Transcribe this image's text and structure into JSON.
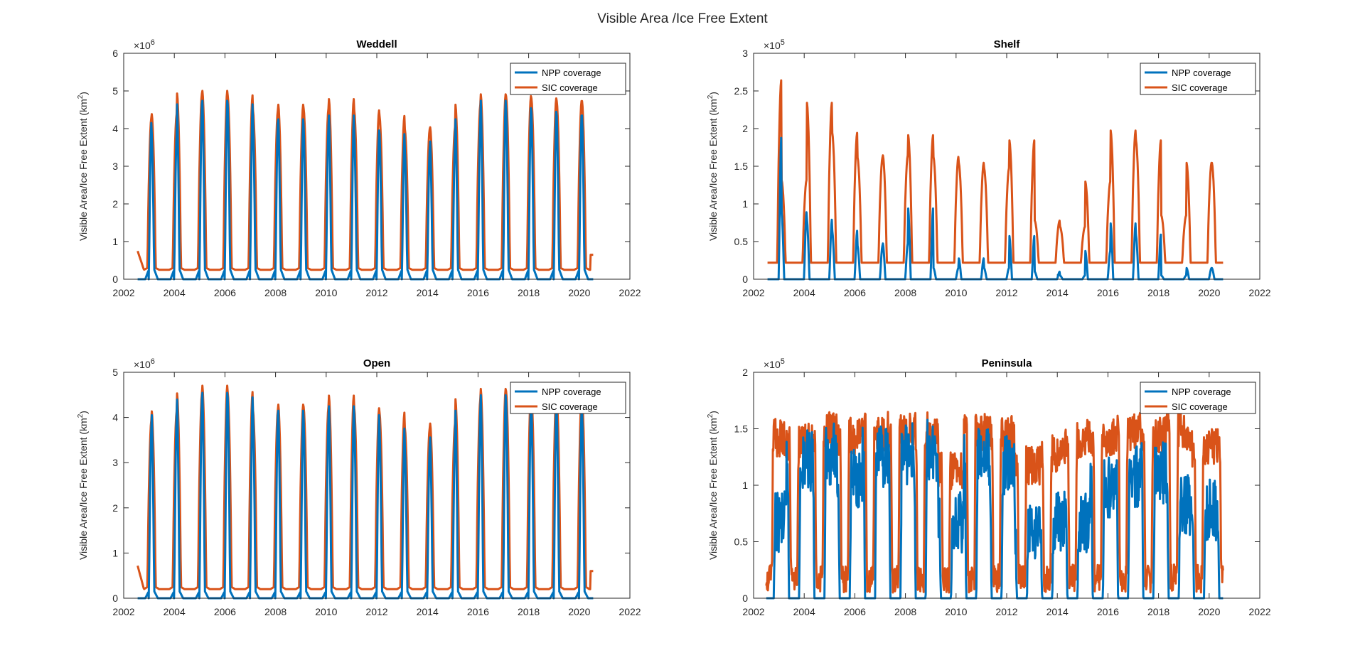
{
  "figure_title": "Visible Area /Ice Free Extent",
  "colors": {
    "npp": "#0072BD",
    "sic": "#D95319",
    "axis": "#262626"
  },
  "chart_data": [
    {
      "type": "line",
      "title": "Weddell",
      "ylabel_main": "Visible Area/Ice Free Extent (km",
      "ylabel_sup": "2",
      "ylabel_close": ")",
      "exponent_base": "×10",
      "exponent_power": "6",
      "xlim": [
        2002,
        2022
      ],
      "ylim": [
        0,
        6
      ],
      "xticks": [
        "2002",
        "2004",
        "2006",
        "2008",
        "2010",
        "2012",
        "2014",
        "2016",
        "2018",
        "2020",
        "2022"
      ],
      "yticks": [
        "0",
        "1",
        "2",
        "3",
        "4",
        "5",
        "6"
      ],
      "legend_position": "top-right",
      "series": [
        {
          "name": "NPP coverage",
          "peaks": [
            4.2,
            3.9,
            4.7,
            4.8,
            4.7,
            4.2,
            4.3,
            4.1,
            4.4,
            4.0,
            3.9,
            3.5,
            3.7,
            4.3,
            4.8,
            4.6,
            4.5,
            4.4
          ],
          "baseline": 0.0,
          "trough": 0.25
        },
        {
          "name": "SIC coverage",
          "peaks": [
            4.3,
            4.4,
            4.95,
            5.02,
            4.9,
            4.5,
            4.65,
            4.55,
            4.8,
            4.5,
            4.35,
            4.0,
            4.05,
            4.65,
            4.93,
            4.88,
            4.82,
            4.75
          ],
          "baseline": 0.25,
          "trough": 0.3,
          "start": 0.75,
          "end": 0.65
        }
      ]
    },
    {
      "type": "line",
      "title": "Shelf",
      "ylabel_main": "Visible Area/Ice Free Extent (km",
      "ylabel_sup": "2",
      "ylabel_close": ")",
      "exponent_base": "×10",
      "exponent_power": "5",
      "xlim": [
        2002,
        2022
      ],
      "ylim": [
        0,
        3
      ],
      "xticks": [
        "2002",
        "2004",
        "2006",
        "2008",
        "2010",
        "2012",
        "2014",
        "2016",
        "2018",
        "2020",
        "2022"
      ],
      "yticks": [
        "0",
        "0.5",
        "1",
        "1.5",
        "2",
        "2.5",
        "3"
      ],
      "legend_position": "top-right",
      "series": [
        {
          "name": "NPP coverage",
          "peaks": [
            1.9,
            0.9,
            0.8,
            0.65,
            0.45,
            0.48,
            0.95,
            0.15,
            0.28,
            0.15,
            0.58,
            0.1,
            0.05,
            0.38,
            0.75,
            0.6,
            0.05,
            0.15
          ],
          "baseline": 0.0
        },
        {
          "name": "SIC coverage",
          "peaks": [
            2.65,
            1.32,
            2.35,
            1.95,
            1.62,
            1.65,
            1.92,
            1.63,
            1.55,
            1.48,
            1.85,
            0.78,
            0.7,
            1.3,
            1.98,
            1.85,
            0.85,
            1.55
          ],
          "baseline": 0.22
        }
      ]
    },
    {
      "type": "line",
      "title": "Open",
      "ylabel_main": "Visible Area/Ice Free Extent (km",
      "ylabel_sup": "2",
      "ylabel_close": ")",
      "exponent_base": "×10",
      "exponent_power": "6",
      "xlim": [
        2002,
        2022
      ],
      "ylim": [
        0,
        5
      ],
      "xticks": [
        "2002",
        "2004",
        "2006",
        "2008",
        "2010",
        "2012",
        "2014",
        "2016",
        "2018",
        "2020",
        "2022"
      ],
      "yticks": [
        "0",
        "1",
        "2",
        "3",
        "4",
        "5"
      ],
      "legend_position": "top-right",
      "series": [
        {
          "name": "NPP coverage",
          "peaks": [
            3.8,
            4.1,
            4.45,
            4.6,
            4.5,
            4.1,
            4.2,
            4.0,
            4.3,
            4.1,
            3.8,
            3.4,
            3.6,
            4.2,
            4.55,
            4.4,
            4.35,
            4.2
          ],
          "baseline": 0.0,
          "trough": 0.15
        },
        {
          "name": "SIC coverage",
          "peaks": [
            3.95,
            4.15,
            4.55,
            4.72,
            4.58,
            4.18,
            4.3,
            4.25,
            4.5,
            4.22,
            4.12,
            3.78,
            3.88,
            4.42,
            4.65,
            4.6,
            4.55,
            4.5
          ],
          "baseline": 0.2,
          "trough": 0.25,
          "start": 0.72,
          "end": 0.6
        }
      ]
    },
    {
      "type": "line",
      "title": "Peninsula",
      "ylabel_main": "Visible Area/Ice Free Extent (km",
      "ylabel_sup": "2",
      "ylabel_close": ")",
      "exponent_base": "×10",
      "exponent_power": "5",
      "xlim": [
        2002,
        2022
      ],
      "ylim": [
        0,
        2
      ],
      "xticks": [
        "2002",
        "2004",
        "2006",
        "2008",
        "2010",
        "2012",
        "2014",
        "2016",
        "2018",
        "2020",
        "2022"
      ],
      "yticks": [
        "0",
        "0.5",
        "1",
        "1.5",
        "2"
      ],
      "legend_position": "top-right",
      "series": [
        {
          "name": "NPP coverage",
          "peaks": [
            0.95,
            1.5,
            1.55,
            1.35,
            1.52,
            1.55,
            1.58,
            0.95,
            1.52,
            1.45,
            0.9,
            0.95,
            0.95,
            1.25,
            1.35,
            1.38,
            1.1,
            1.05
          ],
          "baseline": 0.0
        },
        {
          "name": "SIC coverage",
          "peaks": [
            1.6,
            1.55,
            1.65,
            1.6,
            1.65,
            1.65,
            1.65,
            1.3,
            1.65,
            1.62,
            1.35,
            1.45,
            1.58,
            1.6,
            1.65,
            1.6,
            1.65,
            1.5
          ],
          "baseline": 0.05
        }
      ]
    }
  ]
}
